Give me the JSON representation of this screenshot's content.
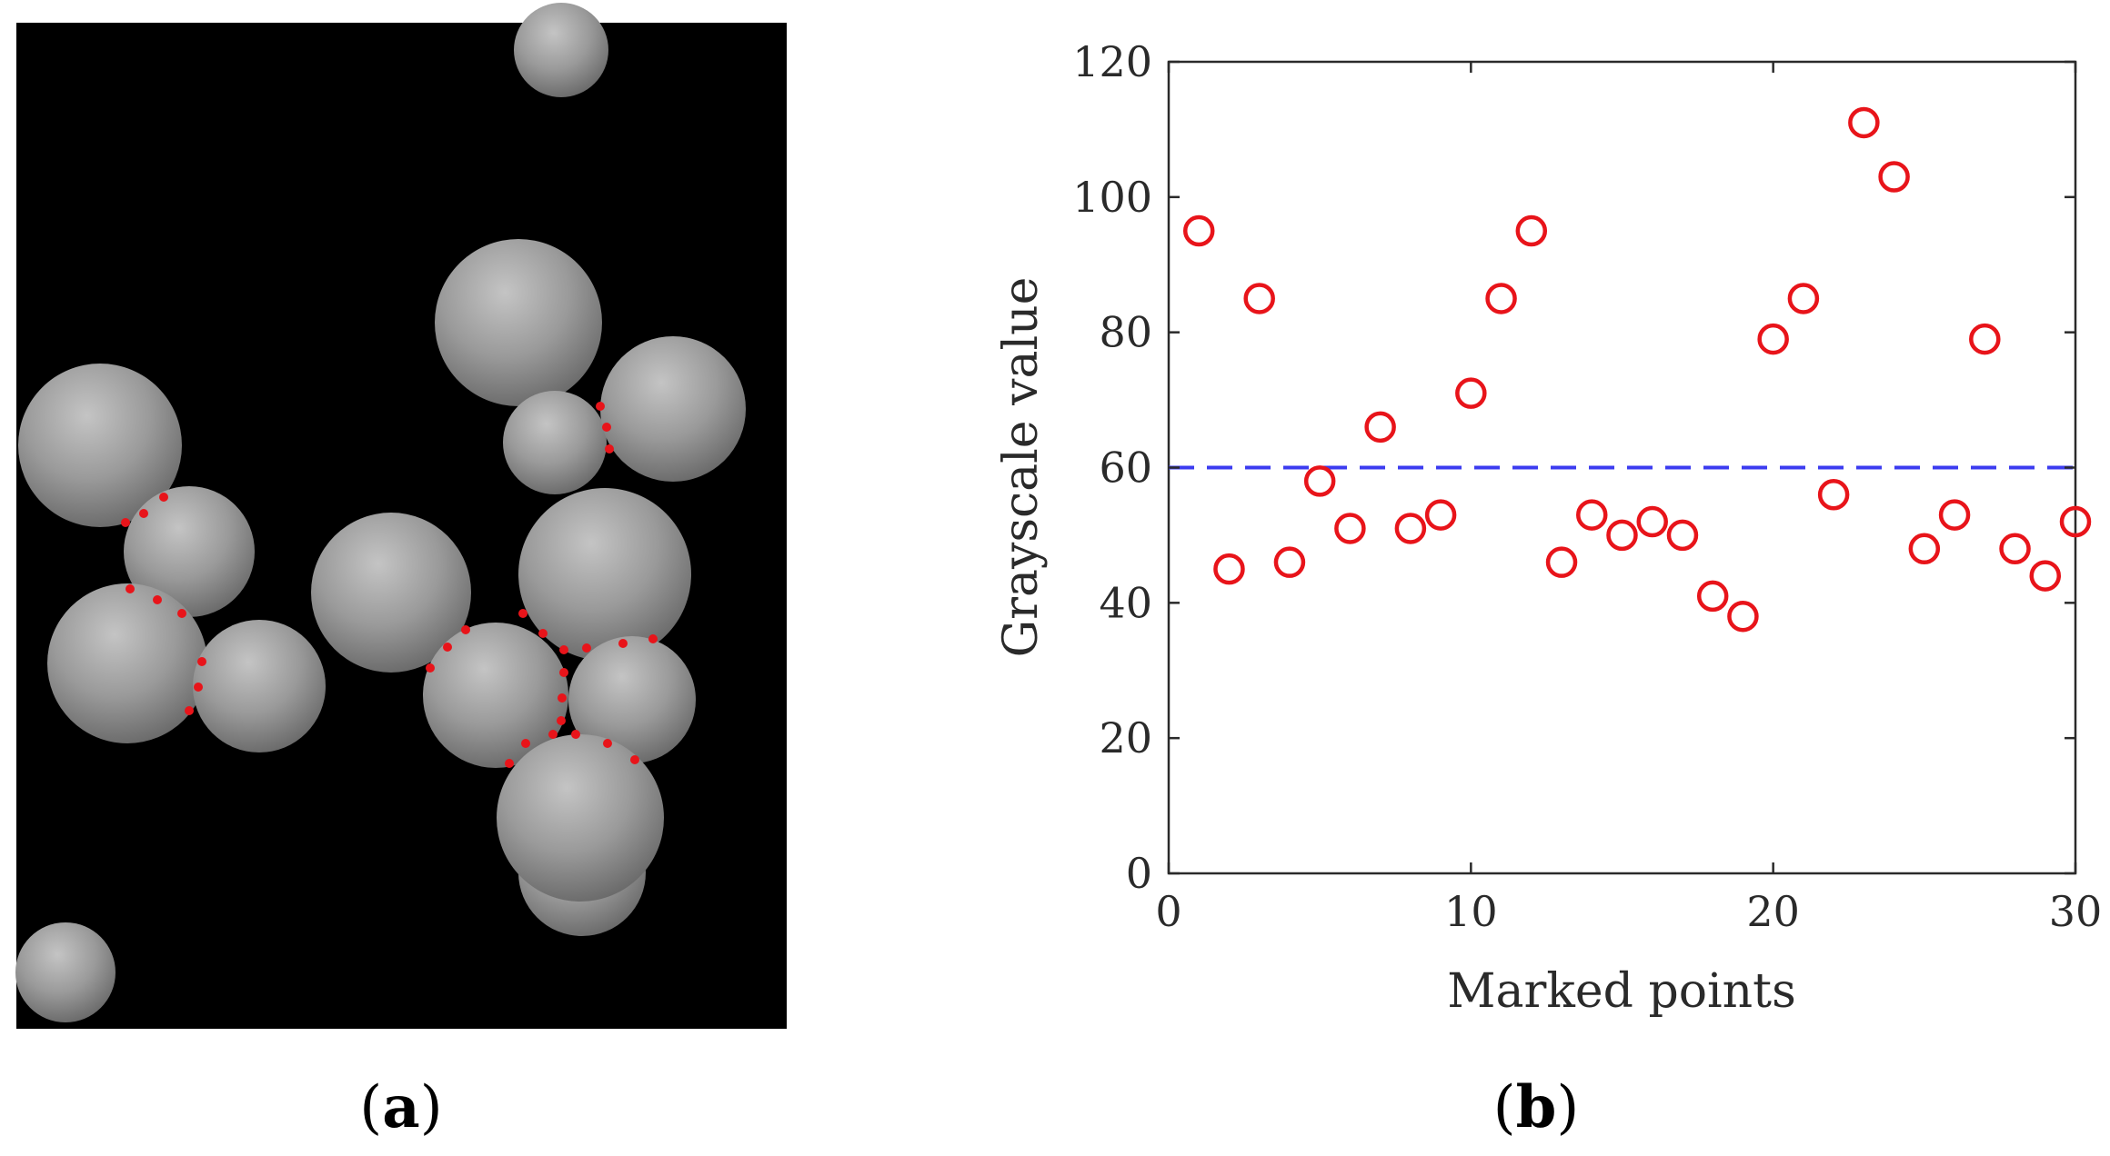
{
  "panels": {
    "a": {
      "open": "(",
      "letter": "a",
      "close": ")"
    },
    "b": {
      "open": "(",
      "letter": "b",
      "close": ")"
    }
  },
  "colors": {
    "marker": "#e8141a",
    "threshold": "#3b3bf0",
    "axis": "#2a2a2a",
    "micrograph_background": "#000000",
    "particle": "#9a9a9a"
  },
  "chart_data": {
    "type": "scatter",
    "title": "",
    "xlabel": "Marked points",
    "ylabel": "Grayscale value",
    "xlim": [
      0,
      30
    ],
    "ylim": [
      0,
      120
    ],
    "xticks": [
      0,
      10,
      20,
      30
    ],
    "yticks": [
      0,
      20,
      40,
      60,
      80,
      100,
      120
    ],
    "grid": false,
    "legend": "none",
    "marker": "open-circle",
    "x": [
      1,
      2,
      3,
      4,
      5,
      6,
      7,
      8,
      9,
      10,
      11,
      12,
      13,
      14,
      15,
      16,
      17,
      18,
      19,
      20,
      21,
      22,
      23,
      24,
      25,
      26,
      27,
      28,
      29,
      30
    ],
    "y": [
      95,
      45,
      85,
      46,
      58,
      51,
      66,
      51,
      53,
      71,
      85,
      95,
      46,
      53,
      50,
      52,
      50,
      41,
      38,
      79,
      85,
      56,
      111,
      103,
      48,
      53,
      79,
      48,
      44,
      52
    ],
    "threshold": {
      "y": 60,
      "style": "dashed"
    }
  }
}
